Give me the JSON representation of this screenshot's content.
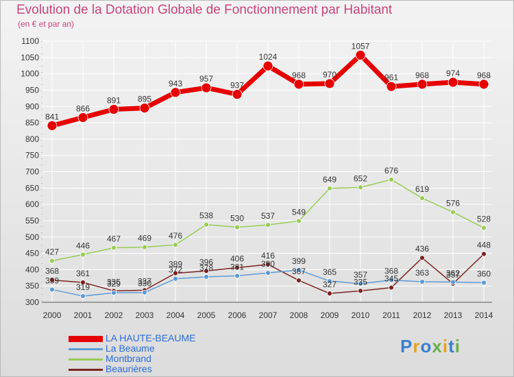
{
  "title": "Evolution de la Dotation Globale de Fonctionnement par Habitant",
  "subtitle": "(en € et par an)",
  "logo": "Proxiti",
  "colors": {
    "title": "#c8447a",
    "axis": "#333333",
    "grid": "#ffffff",
    "legend_text": "#2a6ad8"
  },
  "chart_data": {
    "type": "line",
    "title": "Evolution de la Dotation Globale de Fonctionnement par Habitant",
    "subtitle": "(en € et par an)",
    "x": [
      "2000",
      "2001",
      "2002",
      "2003",
      "2004",
      "2005",
      "2006",
      "2007",
      "2008",
      "2009",
      "2010",
      "2011",
      "2012",
      "2013",
      "2014"
    ],
    "ylim": [
      300,
      1100
    ],
    "yticks": [
      "300",
      "350",
      "400",
      "450",
      "500",
      "550",
      "600",
      "650",
      "700",
      "750",
      "800",
      "850",
      "900",
      "950",
      "1000",
      "1050",
      "1100"
    ],
    "grid": true,
    "legend_position": "bottom-left",
    "series": [
      {
        "name": "LA HAUTE-BEAUME",
        "color": "#e60000",
        "width": 7,
        "marker": 7,
        "values": [
          841,
          866,
          891,
          895,
          943,
          957,
          937,
          1024,
          968,
          970,
          1057,
          961,
          968,
          974,
          968
        ]
      },
      {
        "name": "La Beaume",
        "color": "#5b9bd5",
        "width": 1.5,
        "marker": 3.5,
        "values": [
          339,
          319,
          329,
          330,
          372,
          378,
          381,
          390,
          399,
          365,
          357,
          368,
          363,
          362,
          360
        ]
      },
      {
        "name": "Montbrand",
        "color": "#99cc55",
        "width": 1.5,
        "marker": 3.5,
        "values": [
          427,
          446,
          467,
          469,
          476,
          538,
          530,
          537,
          549,
          649,
          652,
          676,
          619,
          576,
          528
        ]
      },
      {
        "name": "Beaurières",
        "color": "#7b2222",
        "width": 1.5,
        "marker": 3.5,
        "values": [
          368,
          361,
          335,
          337,
          389,
          396,
          406,
          416,
          367,
          327,
          335,
          345,
          436,
          357,
          448
        ]
      }
    ]
  }
}
